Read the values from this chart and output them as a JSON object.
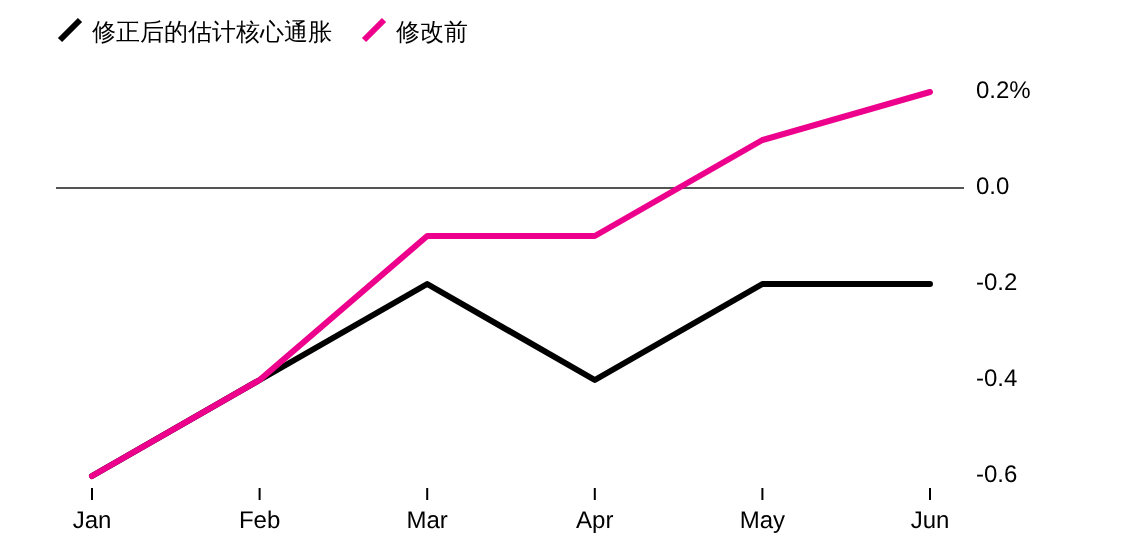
{
  "chart_data": {
    "type": "line",
    "categories": [
      "Jan",
      "Feb",
      "Mar",
      "Apr",
      "May",
      "Jun"
    ],
    "series": [
      {
        "name": "修正后的估计核心通胀",
        "color": "#000000",
        "values": [
          -0.6,
          -0.4,
          -0.2,
          -0.4,
          -0.2,
          -0.2
        ]
      },
      {
        "name": "修改前",
        "color": "#ec008c",
        "values": [
          -0.6,
          -0.4,
          -0.1,
          -0.1,
          0.1,
          0.2
        ]
      }
    ],
    "ylim": [
      -0.6,
      0.2
    ],
    "yticks": [
      {
        "value": 0.2,
        "label": "0.2%"
      },
      {
        "value": 0.0,
        "label": "0.0"
      },
      {
        "value": -0.2,
        "label": "-0.2"
      },
      {
        "value": -0.4,
        "label": "-0.4"
      },
      {
        "value": -0.6,
        "label": "-0.6"
      }
    ],
    "ref_lines": [
      {
        "axis": "y",
        "value": 0,
        "color": "#555555"
      }
    ],
    "grid": false,
    "legend": "top left",
    "marker": "none",
    "line_style": "solid"
  }
}
